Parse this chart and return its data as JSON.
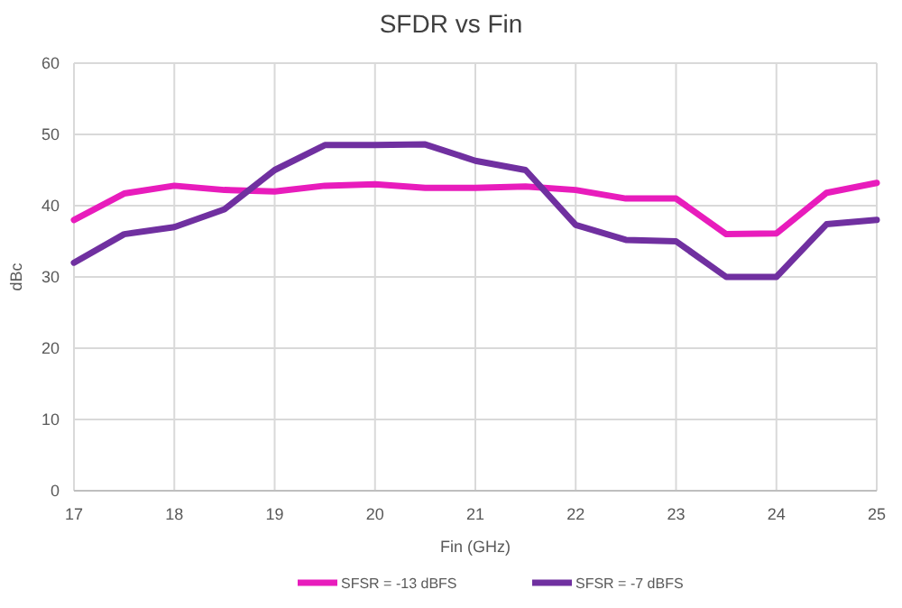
{
  "chart_data": {
    "type": "line",
    "title": "SFDR vs Fin",
    "xlabel": "Fin (GHz)",
    "ylabel": "dBc",
    "x": [
      17,
      17.5,
      18,
      18.5,
      19,
      19.5,
      20,
      20.5,
      21,
      21.5,
      22,
      22.5,
      23,
      23.5,
      24,
      24.5,
      25
    ],
    "series": [
      {
        "name": "SFSR = -13 dBFS",
        "color": "#e81cbc",
        "values": [
          38,
          41.7,
          42.8,
          42.2,
          42,
          42.8,
          43,
          42.5,
          42.5,
          42.7,
          42.2,
          41,
          41,
          36,
          36.1,
          41.8,
          43.2
        ]
      },
      {
        "name": "SFSR = -7 dBFS",
        "color": "#7030a0",
        "values": [
          32,
          36,
          37,
          39.5,
          45,
          48.5,
          48.5,
          48.6,
          46.3,
          45,
          37.3,
          35.2,
          35,
          30,
          30,
          37.4,
          38
        ]
      }
    ],
    "xlim": [
      17,
      25
    ],
    "xticks": [
      17,
      18,
      19,
      20,
      21,
      22,
      23,
      24,
      25
    ],
    "ylim": [
      0,
      60
    ],
    "yticks": [
      0,
      10,
      20,
      30,
      40,
      50,
      60
    ],
    "grid": true,
    "legend": "bottom",
    "line_style": "solid"
  }
}
